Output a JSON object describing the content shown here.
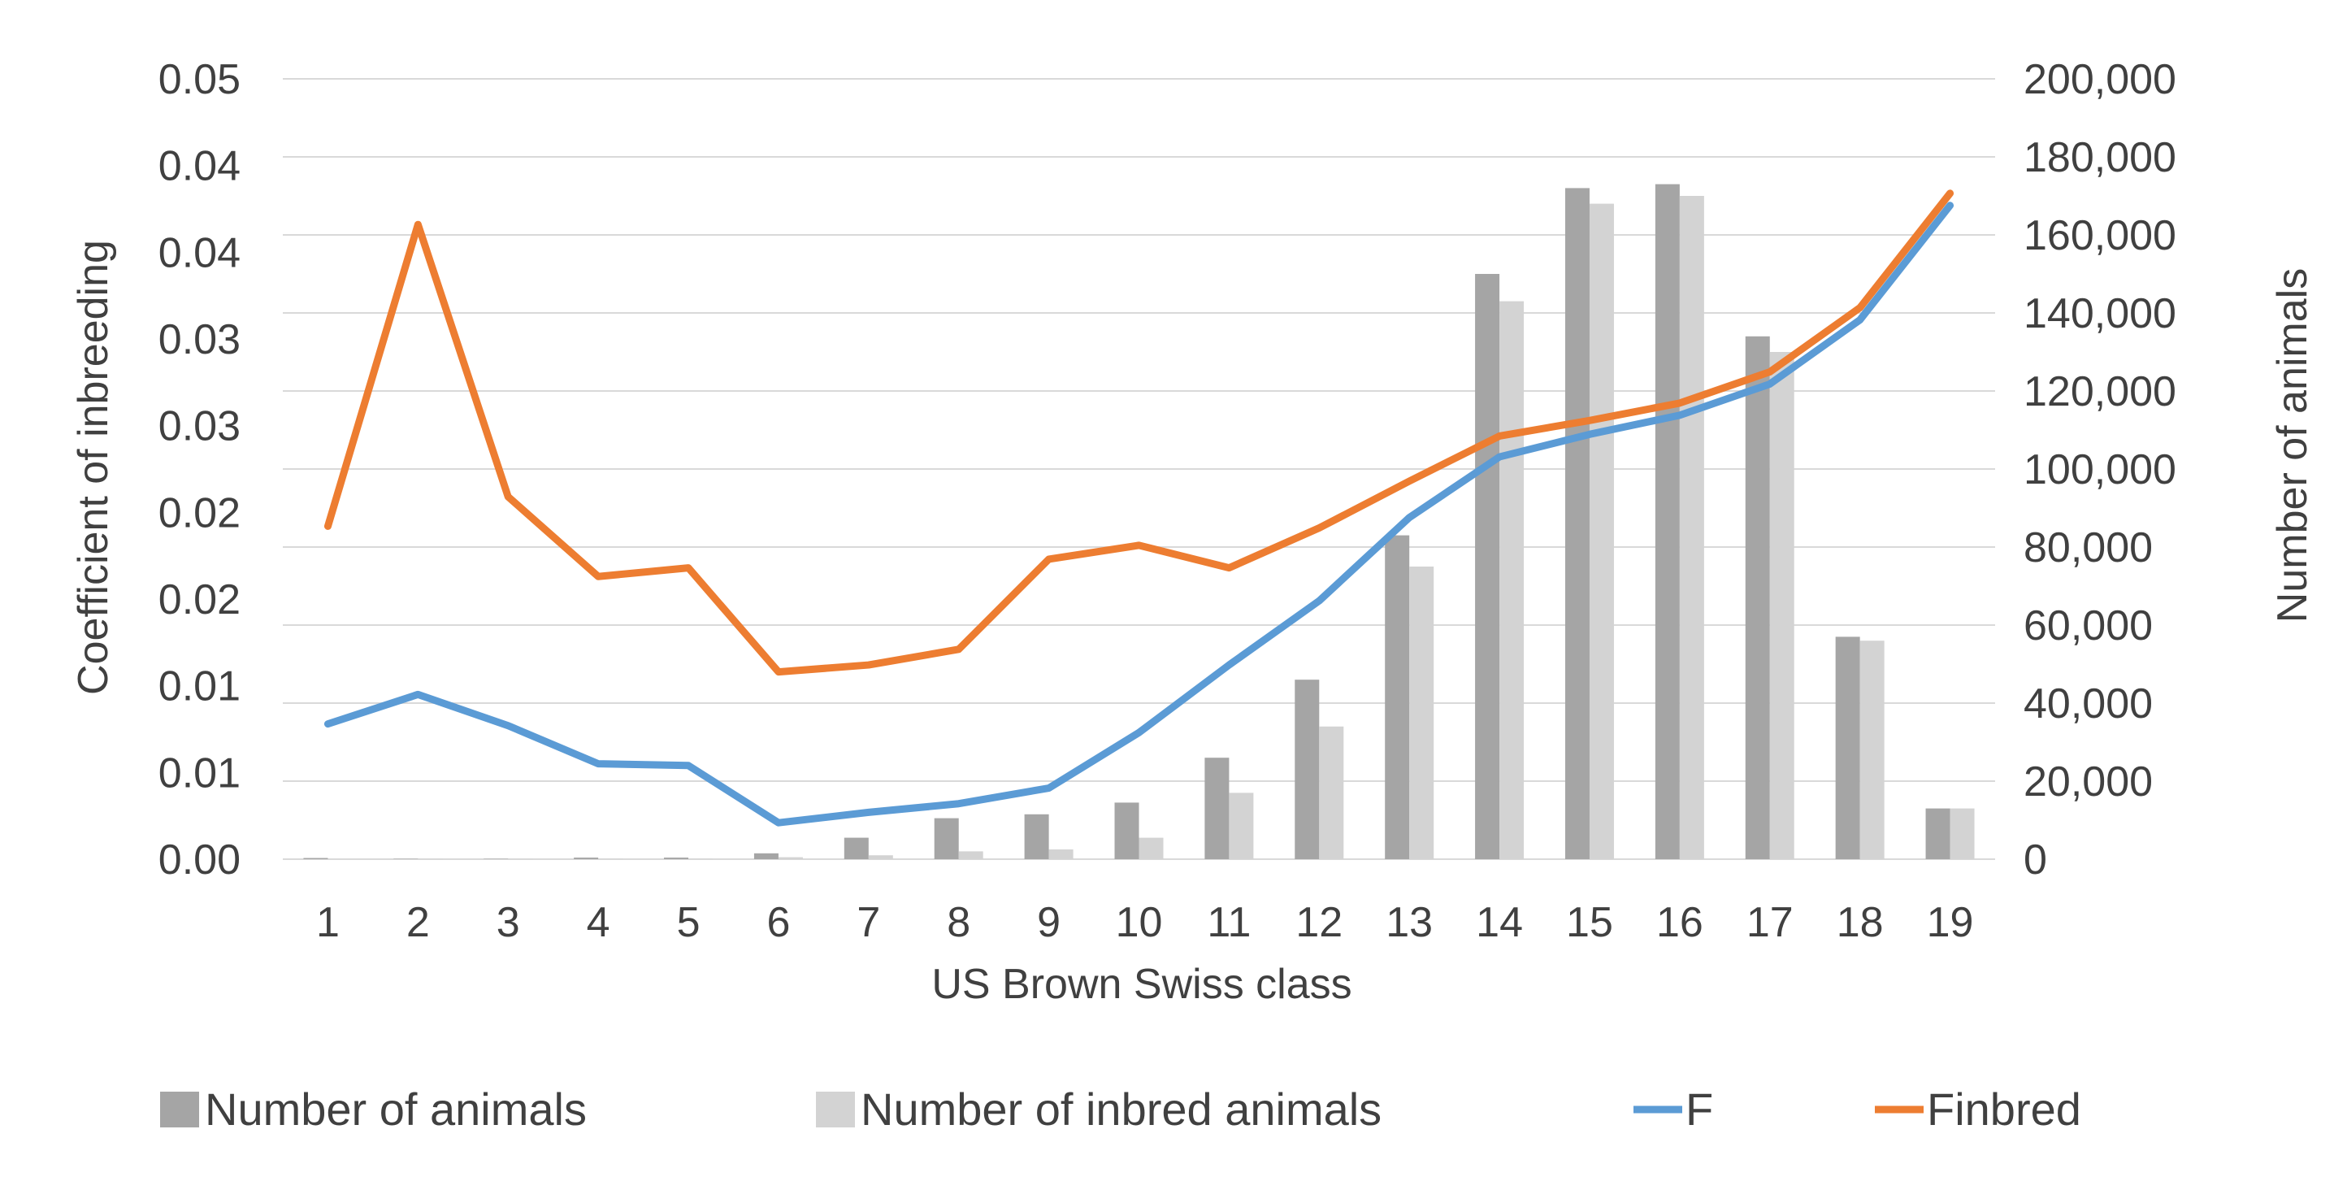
{
  "chart_data": {
    "type": "bar+line",
    "title": "",
    "xlabel": "US Brown Swiss class",
    "ylabel_left": "Coefficient of inbreeding",
    "ylabel_right": "Number of animals",
    "categories": [
      "1",
      "2",
      "3",
      "4",
      "5",
      "6",
      "7",
      "8",
      "9",
      "10",
      "11",
      "12",
      "13",
      "14",
      "15",
      "16",
      "17",
      "18",
      "19"
    ],
    "left_axis": {
      "range": [
        0,
        0.045
      ],
      "tick_values": [
        0,
        0.005,
        0.01,
        0.015,
        0.02,
        0.025,
        0.03,
        0.035,
        0.04,
        0.045
      ],
      "tick_labels": [
        "0.00",
        "0.01",
        "0.01",
        "0.02",
        "0.02",
        "0.03",
        "0.03",
        "0.04",
        "0.04",
        "0.05"
      ]
    },
    "right_axis": {
      "range": [
        0,
        200000
      ],
      "tick_values": [
        0,
        20000,
        40000,
        60000,
        80000,
        100000,
        120000,
        140000,
        160000,
        180000,
        200000
      ],
      "tick_labels": [
        "0",
        "20,000",
        "40,000",
        "60,000",
        "80,000",
        "100,000",
        "120,000",
        "140,000",
        "160,000",
        "180,000",
        "200,000"
      ]
    },
    "gridlines": true,
    "legend_position": "bottom",
    "series": [
      {
        "name": "Number of animals",
        "kind": "bar",
        "axis": "right",
        "color": "#a5a5a5",
        "values": [
          300,
          100,
          100,
          400,
          400,
          1500,
          5500,
          10500,
          11500,
          14500,
          26000,
          46000,
          83000,
          150000,
          172000,
          173000,
          134000,
          57000,
          13000
        ]
      },
      {
        "name": "Number of inbred animals",
        "kind": "bar",
        "axis": "right",
        "color": "#d3d3d3",
        "values": [
          0,
          50,
          50,
          100,
          100,
          500,
          1000,
          2000,
          2500,
          5500,
          17000,
          34000,
          75000,
          143000,
          168000,
          170000,
          130000,
          56000,
          13000
        ]
      },
      {
        "name": "F",
        "kind": "line",
        "axis": "left",
        "color": "#5b9bd5",
        "values": [
          0.0078,
          0.0095,
          0.0077,
          0.0055,
          0.0054,
          0.0021,
          0.0027,
          0.0032,
          0.0041,
          0.0073,
          0.0112,
          0.0149,
          0.0197,
          0.0232,
          0.0245,
          0.0256,
          0.0274,
          0.0311,
          0.0377
        ]
      },
      {
        "name": "Finbred",
        "kind": "line",
        "axis": "left",
        "color": "#ed7d31",
        "values": [
          0.0192,
          0.0366,
          0.0209,
          0.0163,
          0.0168,
          0.0108,
          0.0112,
          0.0121,
          0.0173,
          0.0181,
          0.0168,
          0.0191,
          0.0218,
          0.0244,
          0.0253,
          0.0263,
          0.0281,
          0.0318,
          0.0384
        ]
      }
    ]
  }
}
